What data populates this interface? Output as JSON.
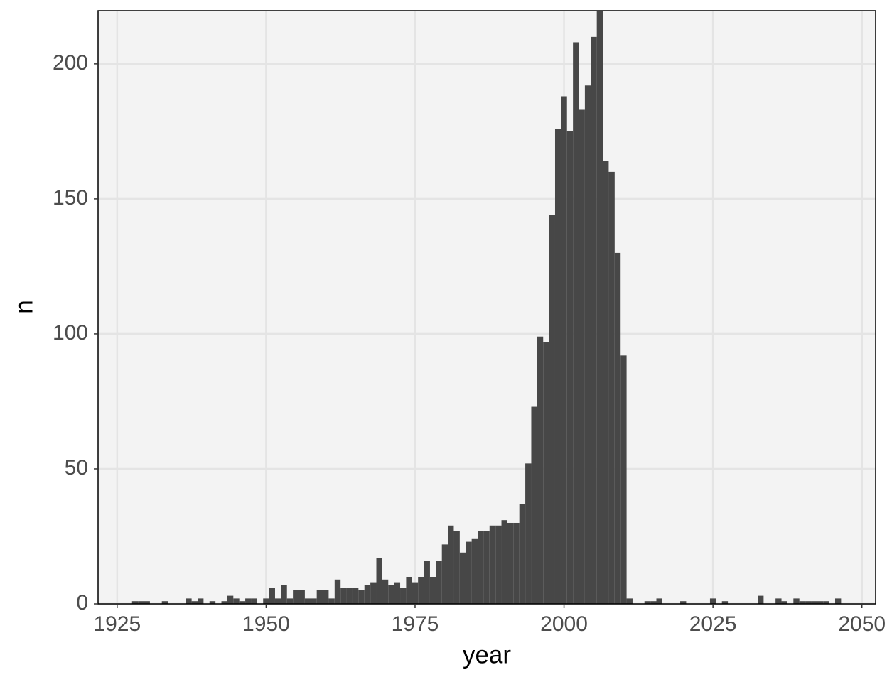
{
  "chart_data": {
    "type": "histogram",
    "x_label": "year",
    "y_label": "n",
    "bins": [
      1927.5,
      1928.5,
      1929.5,
      1930.5,
      1931.5,
      1932.5,
      1933.5,
      1934.5,
      1935.5,
      1936.5,
      1937.5,
      1938.5,
      1939.5,
      1940.5,
      1941.5,
      1942.5,
      1943.5,
      1944.5,
      1945.5,
      1946.5,
      1947.5,
      1948.5,
      1949.5,
      1950.5,
      1951.5,
      1952.5,
      1953.5,
      1954.5,
      1955.5,
      1956.5,
      1957.5,
      1958.5,
      1959.5,
      1960.5,
      1961.5,
      1962.5,
      1963.5,
      1964.5,
      1965.5,
      1966.5,
      1967.5,
      1968.5,
      1969.5,
      1970.5,
      1971.5,
      1972.5,
      1973.5,
      1974.5,
      1975.5,
      1976.5,
      1977.5,
      1978.5,
      1979.5,
      1980.5,
      1981.5,
      1982.5,
      1983.5,
      1984.5,
      1985.5,
      1986.5,
      1987.5,
      1988.5,
      1989.5,
      1990.5,
      1991.5,
      1992.5,
      1993.5,
      1994.5,
      1995.5,
      1996.5,
      1997.5,
      1998.5,
      1999.5,
      2000.5,
      2001.5,
      2002.5,
      2003.5,
      2004.5,
      2005.5,
      2006.5,
      2007.5,
      2008.5,
      2009.5,
      2010.5,
      2011.5,
      2012.5,
      2013.5,
      2014.5,
      2015.5,
      2016.5,
      2017.5,
      2018.5,
      2019.5,
      2020.5,
      2021.5,
      2022.5,
      2023.5,
      2024.5,
      2025.5,
      2026.5,
      2027.5,
      2028.5,
      2029.5,
      2030.5,
      2031.5,
      2032.5,
      2033.5,
      2034.5,
      2035.5,
      2036.5,
      2037.5,
      2038.5,
      2039.5,
      2040.5,
      2041.5,
      2042.5,
      2043.5,
      2044.5,
      2045.5,
      2046.5
    ],
    "values": [
      1,
      1,
      1,
      0,
      0,
      1,
      0,
      0,
      0,
      2,
      1,
      2,
      0,
      1,
      0,
      1,
      3,
      2,
      1,
      2,
      2,
      0,
      2,
      6,
      2,
      7,
      2,
      5,
      5,
      2,
      2,
      5,
      5,
      2,
      9,
      6,
      6,
      6,
      5,
      7,
      8,
      17,
      9,
      7,
      8,
      6,
      10,
      8,
      10,
      16,
      10,
      16,
      22,
      29,
      27,
      19,
      23,
      24,
      27,
      27,
      29,
      29,
      31,
      30,
      30,
      37,
      52,
      73,
      99,
      97,
      144,
      176,
      188,
      175,
      208,
      183,
      192,
      210,
      222,
      164,
      160,
      130,
      92,
      2,
      0,
      0,
      1,
      1,
      2,
      0,
      0,
      0,
      1,
      0,
      0,
      0,
      0,
      2,
      0,
      1,
      0,
      0,
      0,
      0,
      0,
      3,
      0,
      0,
      2,
      1,
      0,
      2,
      1,
      1,
      1,
      1,
      1,
      0,
      2
    ],
    "color": "#474747",
    "xlim": [
      1921.8,
      2052.3
    ],
    "xticks": [
      1925,
      1950,
      1975,
      2000,
      2025,
      2050
    ],
    "ylim": [
      0,
      219.7
    ],
    "yticks": [
      0,
      50,
      100,
      150,
      200
    ],
    "grid": true
  }
}
